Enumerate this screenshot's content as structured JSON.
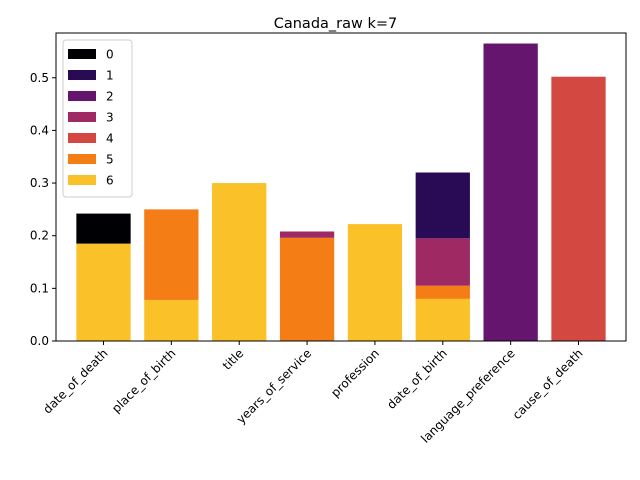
{
  "chart_data": {
    "type": "bar",
    "stacked": true,
    "title": "Canada_raw k=7",
    "xlabel": "",
    "ylabel": "",
    "ylim": [
      0,
      0.585
    ],
    "yticks": [
      "0.0",
      "0.1",
      "0.2",
      "0.3",
      "0.4",
      "0.5"
    ],
    "legend_position": "top-left",
    "grid": false,
    "categories": [
      "date_of_death",
      "place_of_birth",
      "title",
      "years_of_service",
      "profession",
      "date_of_birth",
      "language_preference",
      "cause_of_death"
    ],
    "series": [
      {
        "name": "0",
        "color": "#000004",
        "values": [
          0.057,
          0,
          0,
          0,
          0,
          0,
          0,
          0
        ]
      },
      {
        "name": "1",
        "color": "#280b54",
        "values": [
          0,
          0,
          0,
          0,
          0,
          0.125,
          0,
          0
        ]
      },
      {
        "name": "2",
        "color": "#65156e",
        "values": [
          0,
          0,
          0,
          0,
          0,
          0,
          0.565,
          0
        ]
      },
      {
        "name": "3",
        "color": "#9f2a63",
        "values": [
          0,
          0,
          0,
          0.012,
          0,
          0.09,
          0,
          0
        ]
      },
      {
        "name": "4",
        "color": "#d44842",
        "values": [
          0,
          0,
          0,
          0,
          0,
          0,
          0,
          0.502
        ]
      },
      {
        "name": "5",
        "color": "#f57d15",
        "values": [
          0,
          0.172,
          0,
          0.196,
          0,
          0.025,
          0,
          0
        ]
      },
      {
        "name": "6",
        "color": "#fac228",
        "values": [
          0.185,
          0.078,
          0.3,
          0,
          0.222,
          0.08,
          0,
          0
        ]
      }
    ],
    "stack_order": [
      "6",
      "5",
      "4",
      "3",
      "2",
      "1",
      "0"
    ]
  }
}
